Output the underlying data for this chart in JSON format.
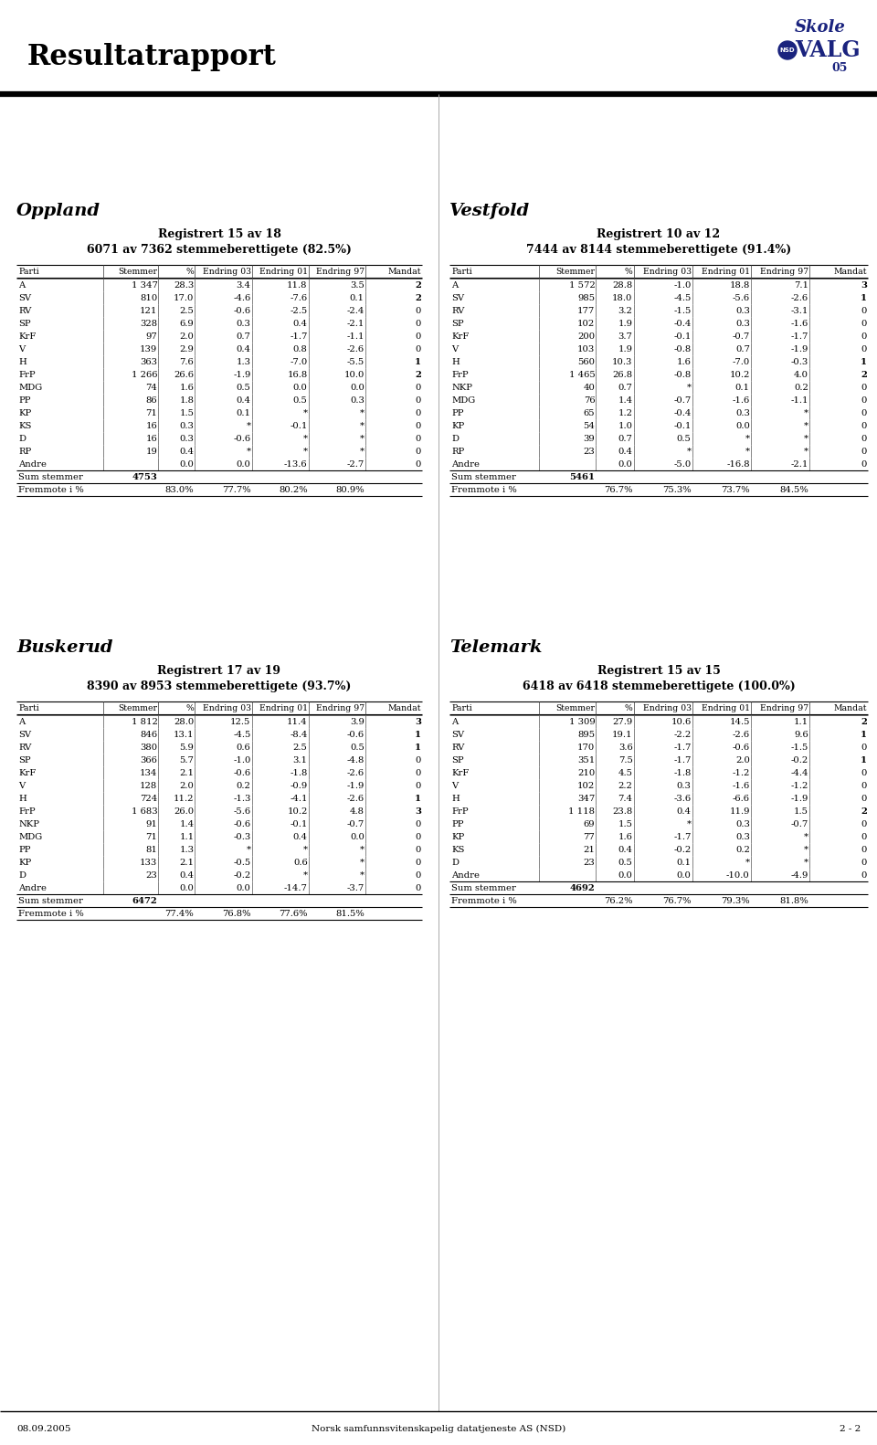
{
  "title": "Resultatrapport",
  "page_num": "2 - 2",
  "date": "08.09.2005",
  "footer_text": "Norsk samfunnsvitenskapelig datatjeneste AS (NSD)",
  "oppland": {
    "region": "Oppland",
    "reg_line1": "Registrert 15 av 18",
    "reg_line2": "6071 av 7362 stemmeberettigete (82.5%)",
    "columns": [
      "Parti",
      "Stemmer",
      "%",
      "Endring 03",
      "Endring 01",
      "Endring 97",
      "Mandat"
    ],
    "rows": [
      [
        "A",
        "1 347",
        "28.3",
        "3.4",
        "11.8",
        "3.5",
        "2"
      ],
      [
        "SV",
        "810",
        "17.0",
        "-4.6",
        "-7.6",
        "0.1",
        "2"
      ],
      [
        "RV",
        "121",
        "2.5",
        "-0.6",
        "-2.5",
        "-2.4",
        "0"
      ],
      [
        "SP",
        "328",
        "6.9",
        "0.3",
        "0.4",
        "-2.1",
        "0"
      ],
      [
        "KrF",
        "97",
        "2.0",
        "0.7",
        "-1.7",
        "-1.1",
        "0"
      ],
      [
        "V",
        "139",
        "2.9",
        "0.4",
        "0.8",
        "-2.6",
        "0"
      ],
      [
        "H",
        "363",
        "7.6",
        "1.3",
        "-7.0",
        "-5.5",
        "1"
      ],
      [
        "FrP",
        "1 266",
        "26.6",
        "-1.9",
        "16.8",
        "10.0",
        "2"
      ],
      [
        "MDG",
        "74",
        "1.6",
        "0.5",
        "0.0",
        "0.0",
        "0"
      ],
      [
        "PP",
        "86",
        "1.8",
        "0.4",
        "0.5",
        "0.3",
        "0"
      ],
      [
        "KP",
        "71",
        "1.5",
        "0.1",
        "*",
        "*",
        "0"
      ],
      [
        "KS",
        "16",
        "0.3",
        "*",
        "-0.1",
        "*",
        "0"
      ],
      [
        "D",
        "16",
        "0.3",
        "-0.6",
        "*",
        "*",
        "0"
      ],
      [
        "RP",
        "19",
        "0.4",
        "*",
        "*",
        "*",
        "0"
      ],
      [
        "Andre",
        "",
        "0.0",
        "0.0",
        "-13.6",
        "-2.7",
        "0"
      ]
    ],
    "sum_stemmer": "4753",
    "fremmote": [
      "",
      "83.0%",
      "77.7%",
      "80.2%",
      "80.9%",
      ""
    ]
  },
  "vestfold": {
    "region": "Vestfold",
    "reg_line1": "Registrert 10 av 12",
    "reg_line2": "7444 av 8144 stemmeberettigete (91.4%)",
    "columns": [
      "Parti",
      "Stemmer",
      "%",
      "Endring 03",
      "Endring 01",
      "Endring 97",
      "Mandat"
    ],
    "rows": [
      [
        "A",
        "1 572",
        "28.8",
        "-1.0",
        "18.8",
        "7.1",
        "3"
      ],
      [
        "SV",
        "985",
        "18.0",
        "-4.5",
        "-5.6",
        "-2.6",
        "1"
      ],
      [
        "RV",
        "177",
        "3.2",
        "-1.5",
        "0.3",
        "-3.1",
        "0"
      ],
      [
        "SP",
        "102",
        "1.9",
        "-0.4",
        "0.3",
        "-1.6",
        "0"
      ],
      [
        "KrF",
        "200",
        "3.7",
        "-0.1",
        "-0.7",
        "-1.7",
        "0"
      ],
      [
        "V",
        "103",
        "1.9",
        "-0.8",
        "0.7",
        "-1.9",
        "0"
      ],
      [
        "H",
        "560",
        "10.3",
        "1.6",
        "-7.0",
        "-0.3",
        "1"
      ],
      [
        "FrP",
        "1 465",
        "26.8",
        "-0.8",
        "10.2",
        "4.0",
        "2"
      ],
      [
        "NKP",
        "40",
        "0.7",
        "*",
        "0.1",
        "0.2",
        "0"
      ],
      [
        "MDG",
        "76",
        "1.4",
        "-0.7",
        "-1.6",
        "-1.1",
        "0"
      ],
      [
        "PP",
        "65",
        "1.2",
        "-0.4",
        "0.3",
        "*",
        "0"
      ],
      [
        "KP",
        "54",
        "1.0",
        "-0.1",
        "0.0",
        "*",
        "0"
      ],
      [
        "D",
        "39",
        "0.7",
        "0.5",
        "*",
        "*",
        "0"
      ],
      [
        "RP",
        "23",
        "0.4",
        "*",
        "*",
        "*",
        "0"
      ],
      [
        "Andre",
        "",
        "0.0",
        "-5.0",
        "-16.8",
        "-2.1",
        "0"
      ]
    ],
    "sum_stemmer": "5461",
    "fremmote": [
      "",
      "76.7%",
      "75.3%",
      "73.7%",
      "84.5%",
      ""
    ]
  },
  "buskerud": {
    "region": "Buskerud",
    "reg_line1": "Registrert 17 av 19",
    "reg_line2": "8390 av 8953 stemmeberettigete (93.7%)",
    "columns": [
      "Parti",
      "Stemmer",
      "%",
      "Endring 03",
      "Endring 01",
      "Endring 97",
      "Mandat"
    ],
    "rows": [
      [
        "A",
        "1 812",
        "28.0",
        "12.5",
        "11.4",
        "3.9",
        "3"
      ],
      [
        "SV",
        "846",
        "13.1",
        "-4.5",
        "-8.4",
        "-0.6",
        "1"
      ],
      [
        "RV",
        "380",
        "5.9",
        "0.6",
        "2.5",
        "0.5",
        "1"
      ],
      [
        "SP",
        "366",
        "5.7",
        "-1.0",
        "3.1",
        "-4.8",
        "0"
      ],
      [
        "KrF",
        "134",
        "2.1",
        "-0.6",
        "-1.8",
        "-2.6",
        "0"
      ],
      [
        "V",
        "128",
        "2.0",
        "0.2",
        "-0.9",
        "-1.9",
        "0"
      ],
      [
        "H",
        "724",
        "11.2",
        "-1.3",
        "-4.1",
        "-2.6",
        "1"
      ],
      [
        "FrP",
        "1 683",
        "26.0",
        "-5.6",
        "10.2",
        "4.8",
        "3"
      ],
      [
        "NKP",
        "91",
        "1.4",
        "-0.6",
        "-0.1",
        "-0.7",
        "0"
      ],
      [
        "MDG",
        "71",
        "1.1",
        "-0.3",
        "0.4",
        "0.0",
        "0"
      ],
      [
        "PP",
        "81",
        "1.3",
        "*",
        "*",
        "*",
        "0"
      ],
      [
        "KP",
        "133",
        "2.1",
        "-0.5",
        "0.6",
        "*",
        "0"
      ],
      [
        "D",
        "23",
        "0.4",
        "-0.2",
        "*",
        "*",
        "0"
      ],
      [
        "Andre",
        "",
        "0.0",
        "0.0",
        "-14.7",
        "-3.7",
        "0"
      ]
    ],
    "sum_stemmer": "6472",
    "fremmote": [
      "",
      "77.4%",
      "76.8%",
      "77.6%",
      "81.5%",
      ""
    ]
  },
  "telemark": {
    "region": "Telemark",
    "reg_line1": "Registrert 15 av 15",
    "reg_line2": "6418 av 6418 stemmeberettigete (100.0%)",
    "columns": [
      "Parti",
      "Stemmer",
      "%",
      "Endring 03",
      "Endring 01",
      "Endring 97",
      "Mandat"
    ],
    "rows": [
      [
        "A",
        "1 309",
        "27.9",
        "10.6",
        "14.5",
        "1.1",
        "2"
      ],
      [
        "SV",
        "895",
        "19.1",
        "-2.2",
        "-2.6",
        "9.6",
        "1"
      ],
      [
        "RV",
        "170",
        "3.6",
        "-1.7",
        "-0.6",
        "-1.5",
        "0"
      ],
      [
        "SP",
        "351",
        "7.5",
        "-1.7",
        "2.0",
        "-0.2",
        "1"
      ],
      [
        "KrF",
        "210",
        "4.5",
        "-1.8",
        "-1.2",
        "-4.4",
        "0"
      ],
      [
        "V",
        "102",
        "2.2",
        "0.3",
        "-1.6",
        "-1.2",
        "0"
      ],
      [
        "H",
        "347",
        "7.4",
        "-3.6",
        "-6.6",
        "-1.9",
        "0"
      ],
      [
        "FrP",
        "1 118",
        "23.8",
        "0.4",
        "11.9",
        "1.5",
        "2"
      ],
      [
        "PP",
        "69",
        "1.5",
        "*",
        "0.3",
        "-0.7",
        "0"
      ],
      [
        "KP",
        "77",
        "1.6",
        "-1.7",
        "0.3",
        "*",
        "0"
      ],
      [
        "KS",
        "21",
        "0.4",
        "-0.2",
        "0.2",
        "*",
        "0"
      ],
      [
        "D",
        "23",
        "0.5",
        "0.1",
        "*",
        "*",
        "0"
      ],
      [
        "Andre",
        "",
        "0.0",
        "0.0",
        "-10.0",
        "-4.9",
        "0"
      ]
    ],
    "sum_stemmer": "4692",
    "fremmote": [
      "",
      "76.2%",
      "76.7%",
      "79.3%",
      "81.8%",
      ""
    ]
  }
}
